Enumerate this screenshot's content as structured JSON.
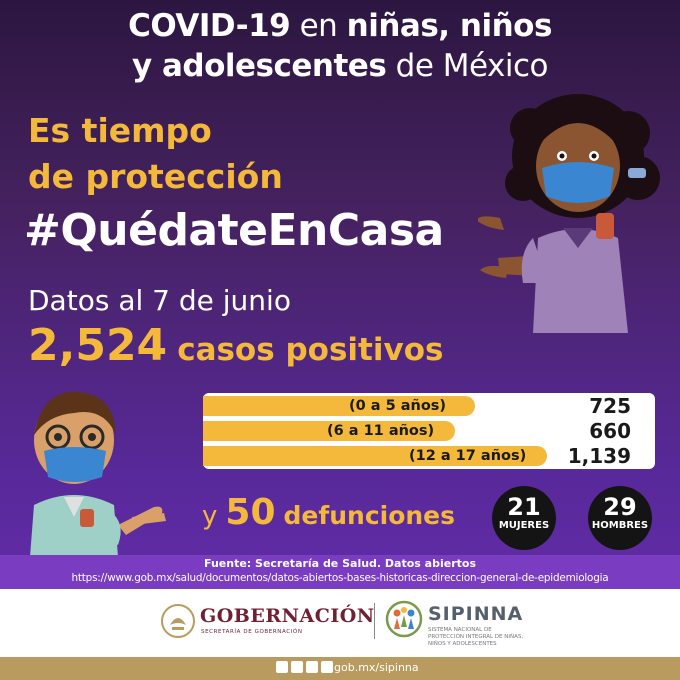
{
  "headline": {
    "line1_bold": "COVID-19",
    "line1_light": " en ",
    "line1_bold2": "niñas, niños",
    "line2_bold": "y adolescentes",
    "line2_light": " de México"
  },
  "subtitle": {
    "line1": "Es tiempo",
    "line2": "de protección"
  },
  "hashtag": "#QuédateEnCasa",
  "stats": {
    "date_label": "Datos al 7 de junio",
    "total_cases": "2,524",
    "cases_label": "casos positivos"
  },
  "age_groups": [
    {
      "label": "(0 a 5 años)",
      "count": "725"
    },
    {
      "label": "(6 a 11 años)",
      "count": "660"
    },
    {
      "label": "(12 a 17 años)",
      "count": "1,139"
    }
  ],
  "deaths": {
    "prefix": "y",
    "count": "50",
    "label": "defunciones",
    "women_count": "21",
    "women_label": "MUJERES",
    "men_count": "29",
    "men_label": "HOMBRES"
  },
  "source": {
    "title": "Fuente: Secretaría de Salud. Datos abiertos",
    "url": "https://www.gob.mx/salud/documentos/datos-abiertos-bases-historicas-direccion-general-de-epidemiologia"
  },
  "footer": {
    "gob_name": "GOBERNACIÓN",
    "gob_sub": "SECRETARÍA DE GOBERNACIÓN",
    "sipinna_name": "SIPINNA",
    "sipinna_sub": "SISTEMA NACIONAL DE PROTECCIÓN INTEGRAL DE NIÑAS, NIÑOS Y ADOLESCENTES",
    "social_icons": [
      "facebook-icon",
      "twitter-icon",
      "instagram-icon",
      "youtube-icon"
    ],
    "site": "gob.mx/sipinna"
  },
  "colors": {
    "accent_yellow": "#f4b93a",
    "background_purple": "#58299a",
    "gob_maroon": "#6f2032",
    "footer_gold": "#b99b5f"
  }
}
